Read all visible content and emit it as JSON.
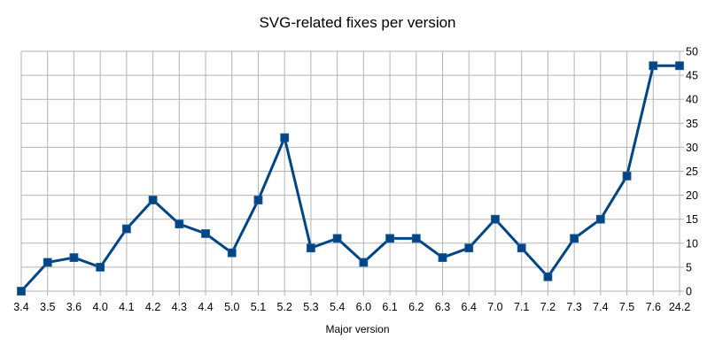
{
  "chart_data": {
    "type": "line",
    "title": "SVG-related fixes per version",
    "xlabel": "Major version",
    "ylabel": "",
    "categories": [
      "3.4",
      "3.5",
      "3.6",
      "4.0",
      "4.1",
      "4.2",
      "4.3",
      "4.4",
      "5.0",
      "5.1",
      "5.2",
      "5.3",
      "5.4",
      "6.0",
      "6.1",
      "6.2",
      "6.3",
      "6.4",
      "7.0",
      "7.1",
      "7.2",
      "7.3",
      "7.4",
      "7.5",
      "7.6",
      "24.2"
    ],
    "series": [
      {
        "values": [
          0,
          6,
          7,
          5,
          13,
          19,
          14,
          12,
          8,
          19,
          32,
          9,
          11,
          6,
          11,
          11,
          7,
          9,
          15,
          9,
          3,
          11,
          15,
          24,
          47,
          47
        ]
      }
    ],
    "ylim": [
      0,
      50
    ],
    "yticks": [
      0,
      5,
      10,
      15,
      20,
      25,
      30,
      35,
      40,
      45,
      50
    ],
    "y_axis_side": "right",
    "grid": true,
    "legend": "none",
    "line_color": "#004586",
    "grid_color": "#b3b3b3",
    "marker": "square"
  }
}
